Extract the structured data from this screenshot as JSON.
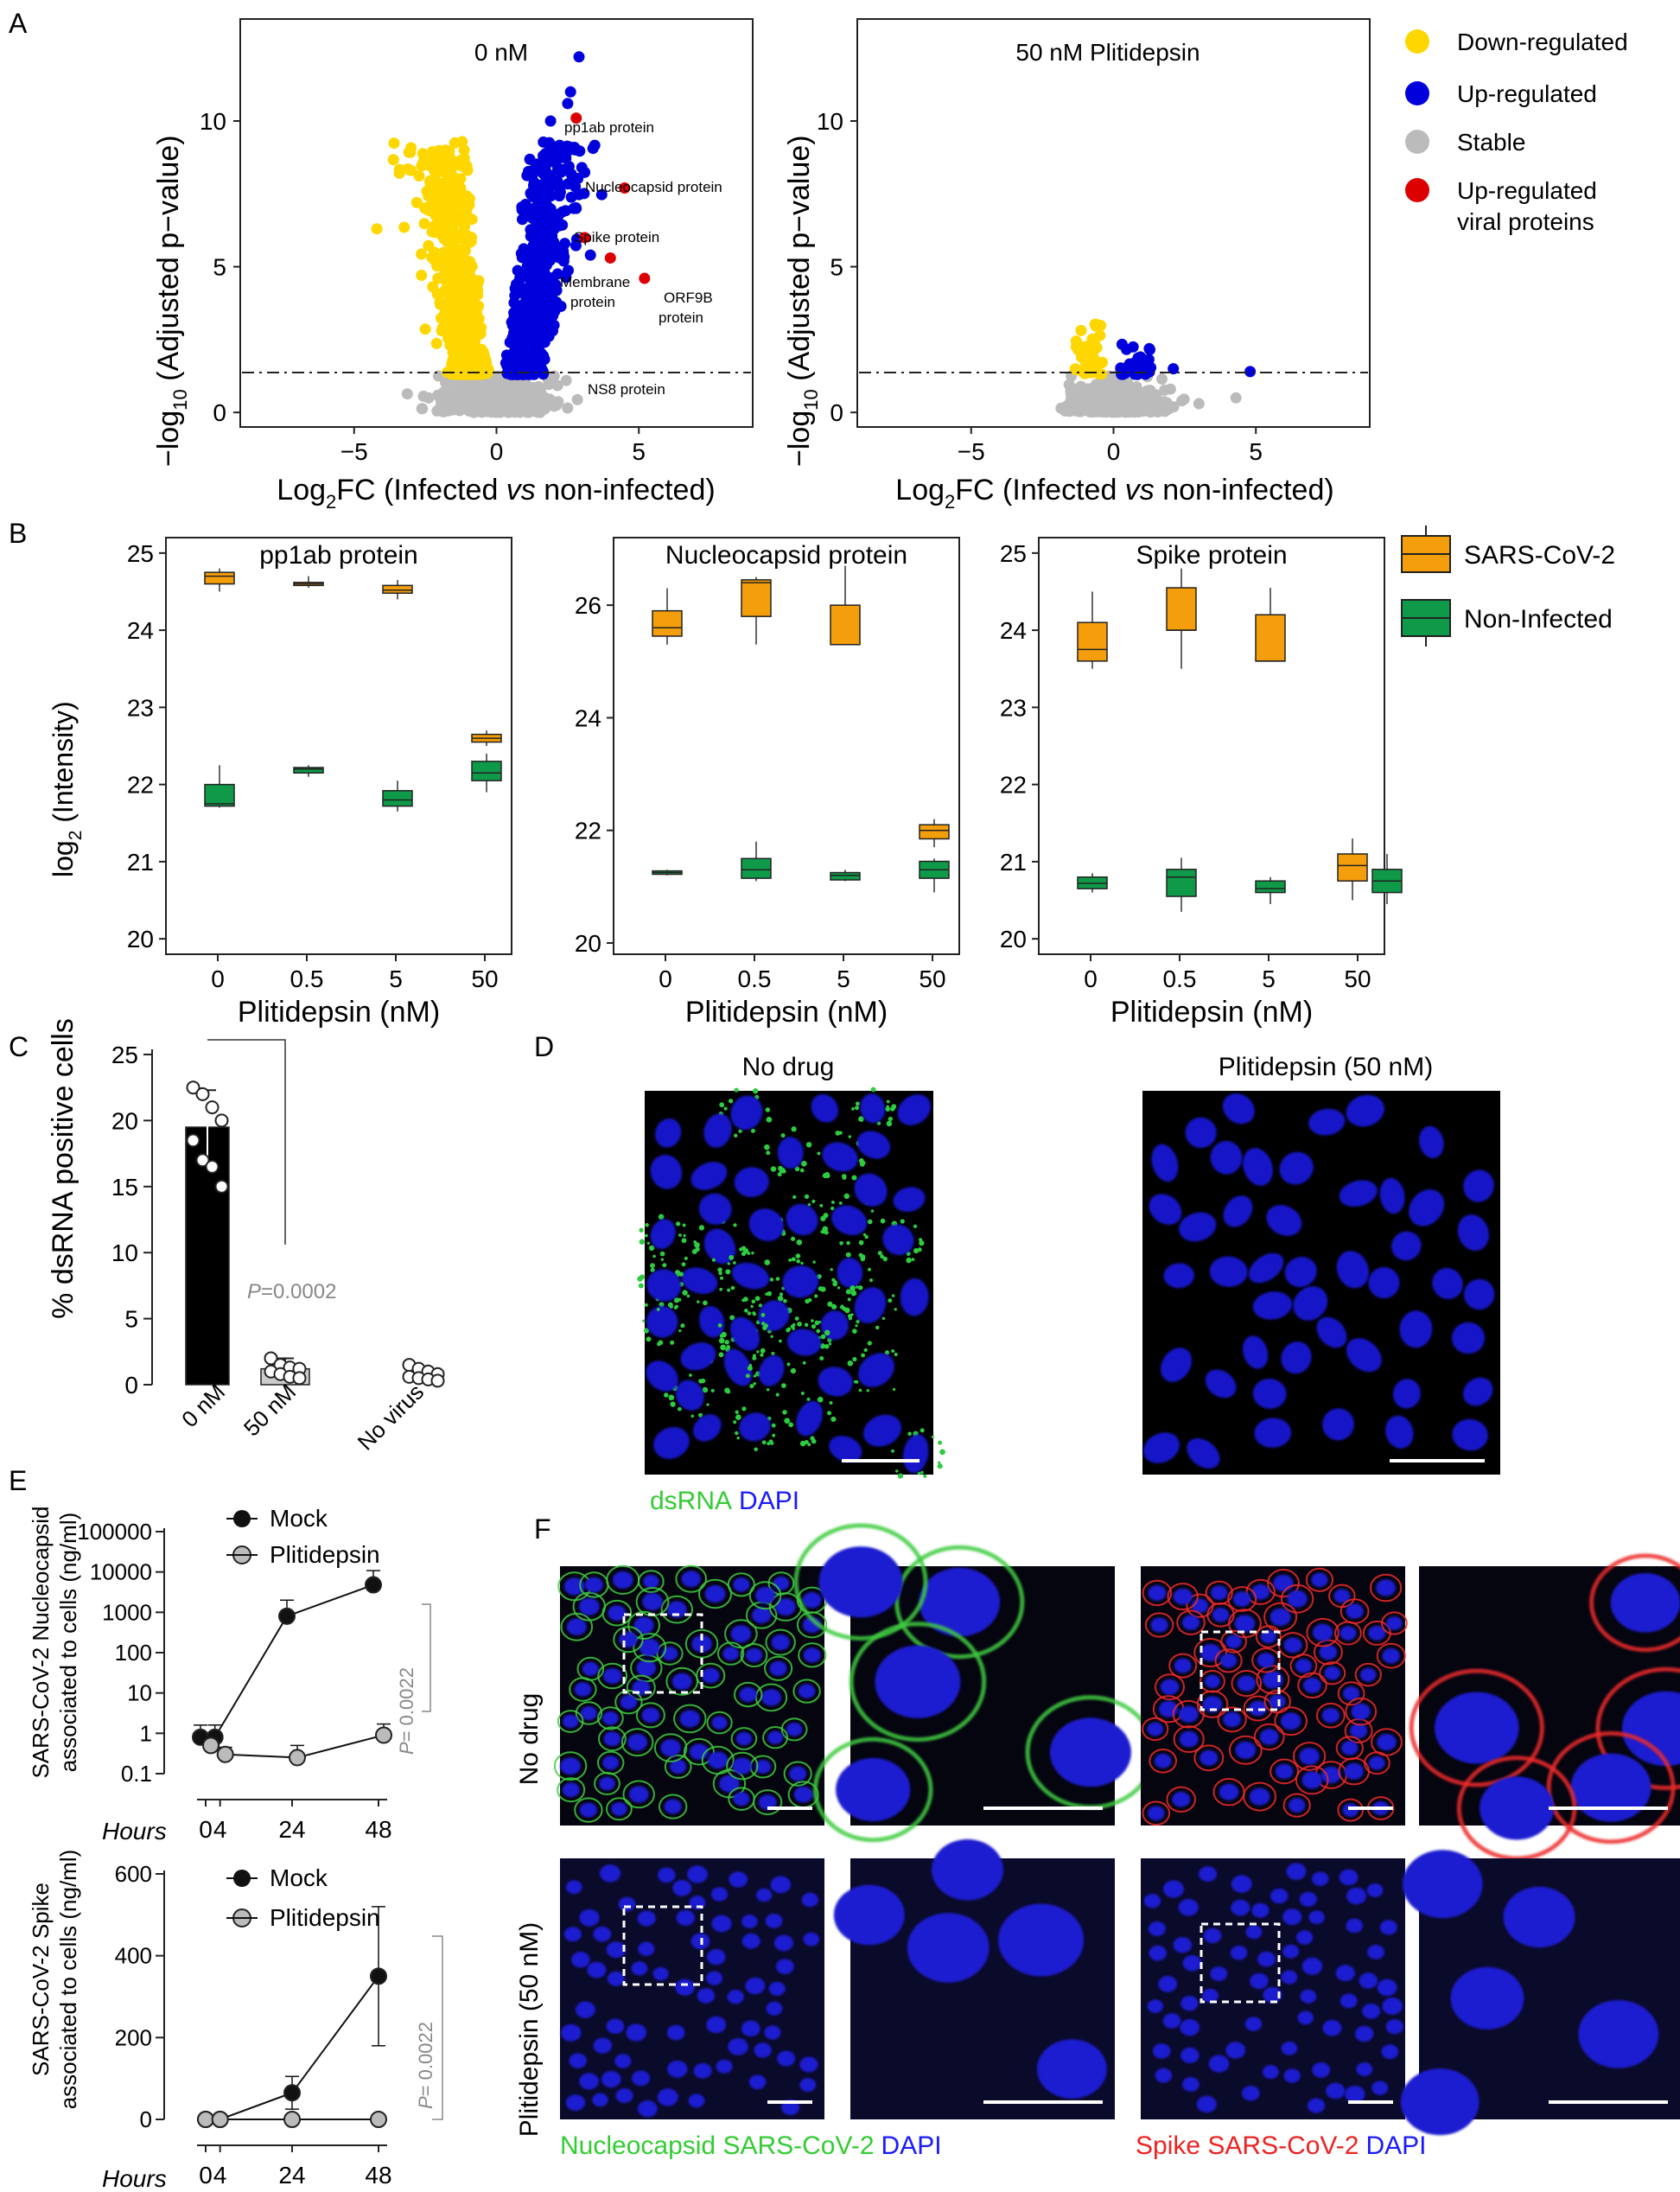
{
  "panel_letters": {
    "A": "A",
    "B": "B",
    "C": "C",
    "D": "D",
    "E": "E",
    "F": "F"
  },
  "colors": {
    "down": "#FFD700",
    "up": "#0000DD",
    "stable": "#BBBBBB",
    "viral": "#DD0000",
    "sars": "#F59E0B",
    "noninf": "#0E9A48",
    "green_fluor": "#33CC33",
    "blue_fluor": "#1A1AFF",
    "red_fluor": "#EE2222"
  },
  "panelA": {
    "left_title": "0 nM",
    "right_title": "50 nM Plitidepsin",
    "ylabel_pre": "−log",
    "ylabel_sub": "10",
    "ylabel_post": " (Adjusted p−value)",
    "xlabel_pre": "Log",
    "xlabel_sub": "2",
    "xlabel_mid": "FC (Infected ",
    "xlabel_vs": "vs",
    "xlabel_post": " non-infected)",
    "xticks": [
      "−5",
      "0",
      "5"
    ],
    "yticks": [
      "0",
      "5",
      "10"
    ],
    "annotations": [
      "pp1ab protein",
      "Nucleocapsid protein",
      "Spike protein",
      "Membrane",
      "protein",
      "ORF9B",
      "protein",
      "NS8 protein"
    ],
    "legend": [
      "Down-regulated",
      "Up-regulated",
      "Stable",
      "Up-regulated",
      "viral proteins"
    ]
  },
  "panelB": {
    "titles": [
      "pp1ab protein",
      "Nucleocapsid protein",
      "Spike protein"
    ],
    "xlabel": "Plitidepsin (nM)",
    "ylabel_pre": "log",
    "ylabel_sub": "2",
    "ylabel_post": " (Intensity)",
    "xticks": [
      "0",
      "0.5",
      "5",
      "50"
    ],
    "legend": [
      "SARS-CoV-2",
      "Non-Infected"
    ]
  },
  "panelC": {
    "ylabel": "% dsRNA positive cells",
    "yticks": [
      "0",
      "5",
      "10",
      "15",
      "20",
      "25"
    ],
    "categories": [
      "0 nM",
      "50 nM",
      "No virus"
    ],
    "p_italic": "P",
    "p_value": "=0.0002"
  },
  "panelD": {
    "titles": [
      "No drug",
      "Plitidepsin (50 nM)"
    ],
    "stain_green": "dsRNA",
    "stain_blue": "DAPI"
  },
  "panelE": {
    "top_ylabel1": "SARS-CoV-2 Nucleocapsid",
    "top_ylabel2": "associated to cells (ng/ml)",
    "top_yticks": [
      "0.1",
      "1",
      "10",
      "100",
      "1000",
      "10000",
      "100000"
    ],
    "bottom_ylabel1": "SARS-CoV-2 Spike",
    "bottom_ylabel2": "associated to cells (ng/ml)",
    "bottom_yticks": [
      "0",
      "200",
      "400",
      "600"
    ],
    "xticks": [
      "0",
      "4",
      "24",
      "48"
    ],
    "xlabel": "Hours",
    "legend": [
      "Mock",
      "Plitidepsin"
    ],
    "p_italic": "P",
    "p_value": "= 0.0022"
  },
  "panelF": {
    "row_labels": [
      "No drug",
      "Plitidepsin (50 nM)"
    ],
    "stain1_color": "Nucleocapsid SARS-CoV-2",
    "stain2_color": "Spike SARS-CoV-2",
    "dapi": "DAPI"
  },
  "chart_data": [
    {
      "type": "scatter",
      "title": "0 nM",
      "xlabel": "Log2FC (Infected vs non-infected)",
      "ylabel": "-log10 (Adjusted p-value)",
      "xlim": [
        -9,
        9
      ],
      "ylim": [
        -0.5,
        13.5
      ],
      "threshold": 1.3,
      "labeled_points": [
        {
          "name": "pp1ab protein",
          "x": 2.8,
          "y": 10.1
        },
        {
          "name": "Nucleocapsid protein",
          "x": 4.5,
          "y": 7.7
        },
        {
          "name": "Spike protein",
          "x": 3.1,
          "y": 6.0
        },
        {
          "name": "Membrane protein",
          "x": 4.0,
          "y": 5.3
        },
        {
          "name": "ORF9B protein",
          "x": 5.2,
          "y": 4.6
        },
        {
          "name": "NS8 protein",
          "x": 3.0,
          "y": 1.1
        }
      ]
    },
    {
      "type": "scatter",
      "title": "50 nM Plitidepsin",
      "xlabel": "Log2FC (Infected vs non-infected)",
      "ylabel": "-log10 (Adjusted p-value)",
      "xlim": [
        -9,
        9
      ],
      "ylim": [
        -0.5,
        13.5
      ],
      "threshold": 1.3
    },
    {
      "type": "box",
      "title": "pp1ab protein",
      "categories": [
        "0",
        "0.5",
        "5",
        "50"
      ],
      "ylim": [
        19.8,
        25.2
      ],
      "series": [
        {
          "name": "SARS-CoV-2",
          "boxes": [
            [
              24.5,
              24.6,
              24.7,
              24.75,
              24.8
            ],
            [
              24.55,
              24.58,
              24.6,
              24.62,
              24.7
            ],
            [
              24.4,
              24.48,
              24.52,
              24.58,
              24.65
            ],
            [
              22.5,
              22.55,
              22.6,
              22.65,
              22.7
            ]
          ]
        },
        {
          "name": "Non-Infected",
          "boxes": [
            [
              21.7,
              21.72,
              21.75,
              22.0,
              22.25
            ],
            [
              22.1,
              22.15,
              22.2,
              22.22,
              22.25
            ],
            [
              21.65,
              21.72,
              21.8,
              21.92,
              22.05
            ],
            [
              21.9,
              22.05,
              22.15,
              22.3,
              22.4
            ]
          ]
        }
      ]
    },
    {
      "type": "box",
      "title": "Nucleocapsid protein",
      "categories": [
        "0",
        "0.5",
        "5",
        "50"
      ],
      "ylim": [
        19.8,
        27.2
      ],
      "series": [
        {
          "name": "SARS-CoV-2",
          "boxes": [
            [
              25.3,
              25.45,
              25.6,
              25.9,
              26.3
            ],
            [
              25.3,
              25.8,
              26.4,
              26.45,
              26.5
            ],
            [
              25.3,
              25.3,
              25.3,
              26.0,
              26.7
            ],
            [
              21.7,
              21.85,
              22.0,
              22.1,
              22.2
            ]
          ]
        },
        {
          "name": "Non-Infected",
          "boxes": [
            [
              21.2,
              21.22,
              21.25,
              21.28,
              21.3
            ],
            [
              21.1,
              21.15,
              21.3,
              21.5,
              21.8
            ],
            [
              21.1,
              21.12,
              21.2,
              21.25,
              21.3
            ],
            [
              20.9,
              21.15,
              21.3,
              21.45,
              21.5
            ]
          ]
        }
      ]
    },
    {
      "type": "box",
      "title": "Spike protein",
      "categories": [
        "0",
        "0.5",
        "5",
        "50"
      ],
      "ylim": [
        19.8,
        25.2
      ],
      "series": [
        {
          "name": "SARS-CoV-2",
          "boxes": [
            [
              23.5,
              23.6,
              23.75,
              24.1,
              24.5
            ],
            [
              23.5,
              24.0,
              24.0,
              24.55,
              24.8
            ],
            [
              23.6,
              23.6,
              23.6,
              24.2,
              24.55
            ],
            [
              20.5,
              20.75,
              20.95,
              21.1,
              21.3
            ]
          ]
        },
        {
          "name": "Non-Infected",
          "boxes": [
            [
              20.6,
              20.65,
              20.72,
              20.8,
              20.85
            ],
            [
              20.35,
              20.55,
              20.8,
              20.9,
              21.05
            ],
            [
              20.45,
              20.6,
              20.65,
              20.75,
              20.8
            ],
            [
              20.45,
              20.6,
              20.75,
              20.9,
              21.1
            ]
          ]
        }
      ]
    },
    {
      "type": "bar",
      "title": "% dsRNA positive cells",
      "categories": [
        "0 nM",
        "50 nM",
        "No virus"
      ],
      "values": [
        19.5,
        1.2,
        0.0
      ],
      "errors": [
        2.8,
        0.8,
        0.0
      ],
      "ylim": [
        0,
        25
      ],
      "points": [
        [
          22.5,
          22.0,
          21.0,
          20.0,
          18.5,
          17.0,
          16.5,
          15.0
        ],
        [
          2.0,
          1.5,
          1.3,
          1.2,
          1.0,
          0.8,
          0.6,
          0.5
        ],
        [
          1.5,
          1.2,
          1.0,
          0.8,
          0.6,
          0.5,
          0.4,
          0.3
        ]
      ]
    },
    {
      "type": "line",
      "title": "SARS-CoV-2 Nucleocapsid associated to cells (ng/ml)",
      "x": [
        0,
        4,
        24,
        48
      ],
      "yscale": "log",
      "ylim": [
        0.1,
        100000
      ],
      "series": [
        {
          "name": "Mock",
          "values": [
            0.8,
            0.8,
            800,
            4800
          ],
          "errors": [
            0.8,
            0.8,
            1200,
            6000
          ]
        },
        {
          "name": "Plitidepsin",
          "values": [
            0.5,
            0.3,
            0.25,
            0.9
          ],
          "errors": [
            0.3,
            0.15,
            0.25,
            0.8
          ]
        }
      ]
    },
    {
      "type": "line",
      "title": "SARS-CoV-2 Spike associated to cells (ng/ml)",
      "x": [
        0,
        4,
        24,
        48
      ],
      "ylim": [
        0,
        600
      ],
      "series": [
        {
          "name": "Mock",
          "values": [
            0,
            0,
            65,
            350
          ],
          "errors": [
            0,
            0,
            40,
            170
          ]
        },
        {
          "name": "Plitidepsin",
          "values": [
            0,
            0,
            0,
            0
          ],
          "errors": [
            0,
            0,
            0,
            0
          ]
        }
      ]
    }
  ]
}
